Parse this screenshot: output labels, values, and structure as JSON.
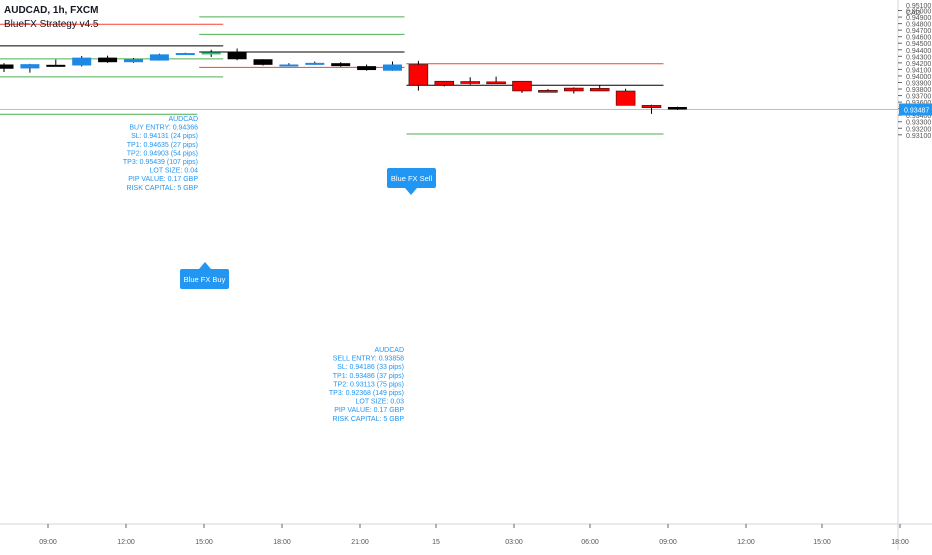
{
  "header": {
    "symbol": "AUDCAD, 1h, FXCM",
    "indicator": "BlueFX Strategy v4.5",
    "currency": "CAD"
  },
  "colors": {
    "bull_filled": "#1e88e5",
    "bear_black": "#000000",
    "bear_red": "#ff0000",
    "signal_green": "#26c281",
    "label_blue": "#2196f3",
    "tp_line": "#4caf50",
    "sl_line": "#f44336",
    "entry_line": "#000000",
    "price_line": "#90caf9"
  },
  "buy_label": {
    "text": "Blue FX Buy",
    "lines": [
      "AUDCAD",
      "BUY ENTRY: 0.94366",
      "SL: 0.94131 (24 pips)",
      "TP1: 0.94635 (27 pips)",
      "TP2: 0.94903 (54 pips)",
      "TP3: 0.95439 (107 pips)",
      "LOT SIZE: 0.04",
      "PIP VALUE: 0.17 GBP",
      "RISK CAPITAL: 5 GBP"
    ]
  },
  "sell_label": {
    "text": "Blue FX Sell",
    "lines": [
      "AUDCAD",
      "SELL ENTRY: 0.93858",
      "SL: 0.94186 (33 pips)",
      "TP1: 0.93486 (37 pips)",
      "TP2: 0.93113 (75 pips)",
      "TP3: 0.92368 (149 pips)",
      "LOT SIZE: 0.03",
      "PIP VALUE: 0.17 GBP",
      "RISK CAPITAL: 5 GBP"
    ]
  },
  "chart_data": {
    "type": "candlestick",
    "symbol": "AUDCAD",
    "timeframe": "1h",
    "y_ticks": [
      "0.95000",
      "0.94900",
      "0.94800",
      "0.94700",
      "0.94600",
      "0.94500",
      "0.94400",
      "0.94300",
      "0.94200",
      "0.94100",
      "0.94000",
      "0.93900",
      "0.93800",
      "0.93700",
      "0.93600",
      "0.93500",
      "0.93400",
      "0.93300",
      "0.93200",
      "0.93100"
    ],
    "y_top_label": "0.95100",
    "ylim": [
      0.93085,
      0.95115
    ],
    "x_labels": [
      "09:00",
      "12:00",
      "15:00",
      "18:00",
      "21:00",
      "15",
      "03:00",
      "06:00",
      "09:00",
      "12:00",
      "15:00",
      "18:00"
    ],
    "current_price": "0.93487",
    "candles": [
      {
        "o": 0.94175,
        "h": 0.94195,
        "l": 0.9406,
        "c": 0.9411,
        "color": "black"
      },
      {
        "o": 0.94115,
        "h": 0.94185,
        "l": 0.9405,
        "c": 0.9418,
        "color": "blue"
      },
      {
        "o": 0.9417,
        "h": 0.9425,
        "l": 0.9415,
        "c": 0.9416,
        "color": "black"
      },
      {
        "o": 0.9416,
        "h": 0.94305,
        "l": 0.94145,
        "c": 0.9428,
        "color": "blue"
      },
      {
        "o": 0.9428,
        "h": 0.9431,
        "l": 0.942,
        "c": 0.9421,
        "color": "black"
      },
      {
        "o": 0.9421,
        "h": 0.94275,
        "l": 0.942,
        "c": 0.9426,
        "color": "blue"
      },
      {
        "o": 0.94235,
        "h": 0.9434,
        "l": 0.94235,
        "c": 0.9433,
        "color": "blue"
      },
      {
        "o": 0.9433,
        "h": 0.94355,
        "l": 0.9432,
        "c": 0.9435,
        "color": "blue"
      },
      {
        "o": 0.9434,
        "h": 0.944,
        "l": 0.9429,
        "c": 0.9436,
        "color": "green"
      },
      {
        "o": 0.9436,
        "h": 0.9442,
        "l": 0.9424,
        "c": 0.94255,
        "color": "black"
      },
      {
        "o": 0.94255,
        "h": 0.94255,
        "l": 0.9416,
        "c": 0.9417,
        "color": "black"
      },
      {
        "o": 0.9417,
        "h": 0.94195,
        "l": 0.9416,
        "c": 0.94175,
        "color": "blue"
      },
      {
        "o": 0.94175,
        "h": 0.9422,
        "l": 0.9417,
        "c": 0.942,
        "color": "blue"
      },
      {
        "o": 0.94195,
        "h": 0.9421,
        "l": 0.9414,
        "c": 0.9415,
        "color": "black"
      },
      {
        "o": 0.9415,
        "h": 0.94175,
        "l": 0.9408,
        "c": 0.9409,
        "color": "black"
      },
      {
        "o": 0.9408,
        "h": 0.9422,
        "l": 0.9408,
        "c": 0.94175,
        "color": "blue"
      },
      {
        "o": 0.94175,
        "h": 0.9423,
        "l": 0.93775,
        "c": 0.9386,
        "color": "red"
      },
      {
        "o": 0.9392,
        "h": 0.9392,
        "l": 0.9384,
        "c": 0.9386,
        "color": "red"
      },
      {
        "o": 0.93915,
        "h": 0.9398,
        "l": 0.93865,
        "c": 0.93885,
        "color": "red"
      },
      {
        "o": 0.9391,
        "h": 0.9399,
        "l": 0.9388,
        "c": 0.93885,
        "color": "red"
      },
      {
        "o": 0.9392,
        "h": 0.9392,
        "l": 0.9374,
        "c": 0.9377,
        "color": "red"
      },
      {
        "o": 0.9378,
        "h": 0.938,
        "l": 0.9375,
        "c": 0.9377,
        "color": "red"
      },
      {
        "o": 0.93815,
        "h": 0.93825,
        "l": 0.9373,
        "c": 0.9377,
        "color": "red"
      },
      {
        "o": 0.9381,
        "h": 0.9386,
        "l": 0.9377,
        "c": 0.9377,
        "color": "red"
      },
      {
        "o": 0.9377,
        "h": 0.93805,
        "l": 0.9357,
        "c": 0.9355,
        "color": "red"
      },
      {
        "o": 0.9355,
        "h": 0.9356,
        "l": 0.9342,
        "c": 0.93515,
        "color": "red"
      },
      {
        "o": 0.93525,
        "h": 0.9353,
        "l": 0.9348,
        "c": 0.93487,
        "color": "black"
      }
    ],
    "levels": [
      {
        "name": "buy-sl-prev",
        "price": 0.9479,
        "kind": "sl",
        "from": -3,
        "to": 8
      },
      {
        "name": "buy-entry-prev",
        "price": 0.9446,
        "kind": "entry",
        "from": -3,
        "to": 8
      },
      {
        "name": "buy-tp-prev",
        "price": 0.9426,
        "kind": "tp",
        "from": -3,
        "to": 8
      },
      {
        "name": "buy-sl2-prev",
        "price": 0.93985,
        "kind": "tp",
        "from": -3,
        "to": 8
      },
      {
        "name": "buy-tp3",
        "price": 0.94903,
        "kind": "tp",
        "from": 8,
        "to": 15
      },
      {
        "name": "buy-tp2",
        "price": 0.94635,
        "kind": "tp",
        "from": 8,
        "to": 15
      },
      {
        "name": "buy-entry",
        "price": 0.94366,
        "kind": "entry",
        "from": 8,
        "to": 15
      },
      {
        "name": "buy-sl",
        "price": 0.94131,
        "kind": "sl",
        "from": 8,
        "to": 15
      },
      {
        "name": "sell-sl",
        "price": 0.94186,
        "kind": "sl",
        "from": 16,
        "to": 25
      },
      {
        "name": "sell-entry",
        "price": 0.93858,
        "kind": "entry",
        "from": 16,
        "to": 25
      },
      {
        "name": "sell-tp1",
        "price": 0.93486,
        "kind": "tp",
        "from": 16,
        "to": 25
      },
      {
        "name": "sell-tp2",
        "price": 0.93113,
        "kind": "tp",
        "from": 16,
        "to": 25
      },
      {
        "name": "prev-tp-low",
        "price": 0.93415,
        "kind": "tp",
        "from": -3,
        "to": 7
      }
    ]
  }
}
